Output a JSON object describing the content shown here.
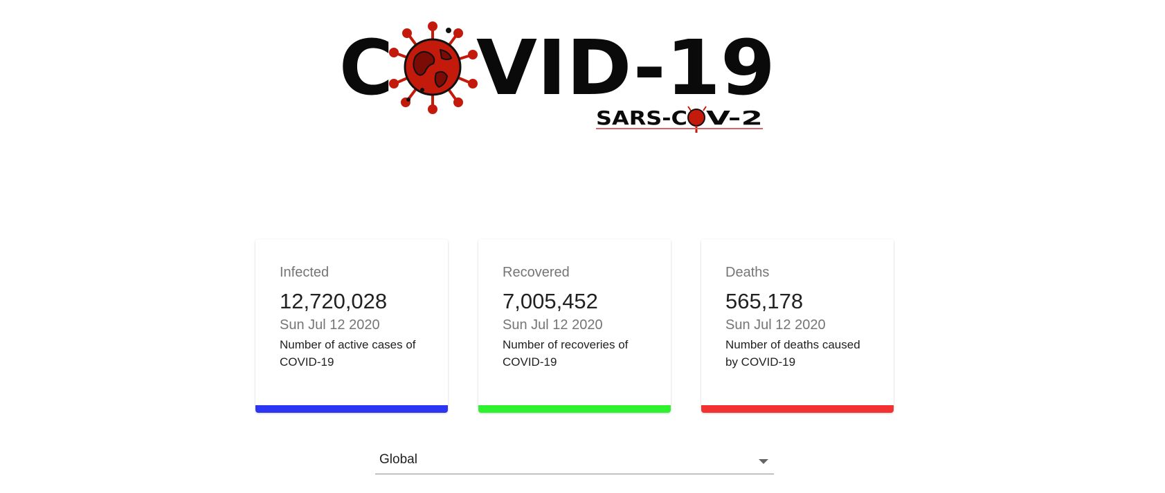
{
  "logo": {
    "text_left": "C",
    "text_right": "VID-19",
    "subtitle_left": "SARS-C",
    "subtitle_right": "V-2",
    "icon": "virus-globe-icon",
    "colors": {
      "text": "#0a0a0a",
      "virus": "#c41a0c",
      "underline": "#d9636b"
    }
  },
  "cards": [
    {
      "title": "Infected",
      "value": "12,720,028",
      "date": "Sun Jul 12 2020",
      "description": "Number of active cases of COVID-19",
      "color": "#2b35f2"
    },
    {
      "title": "Recovered",
      "value": "7,005,452",
      "date": "Sun Jul 12 2020",
      "description": "Number of recoveries of COVID-19",
      "color": "#2ef22e"
    },
    {
      "title": "Deaths",
      "value": "565,178",
      "date": "Sun Jul 12 2020",
      "description": "Number of deaths caused by COVID-19",
      "color": "#f23232"
    }
  ],
  "country_select": {
    "value": "Global",
    "icon": "chevron-down-icon"
  }
}
